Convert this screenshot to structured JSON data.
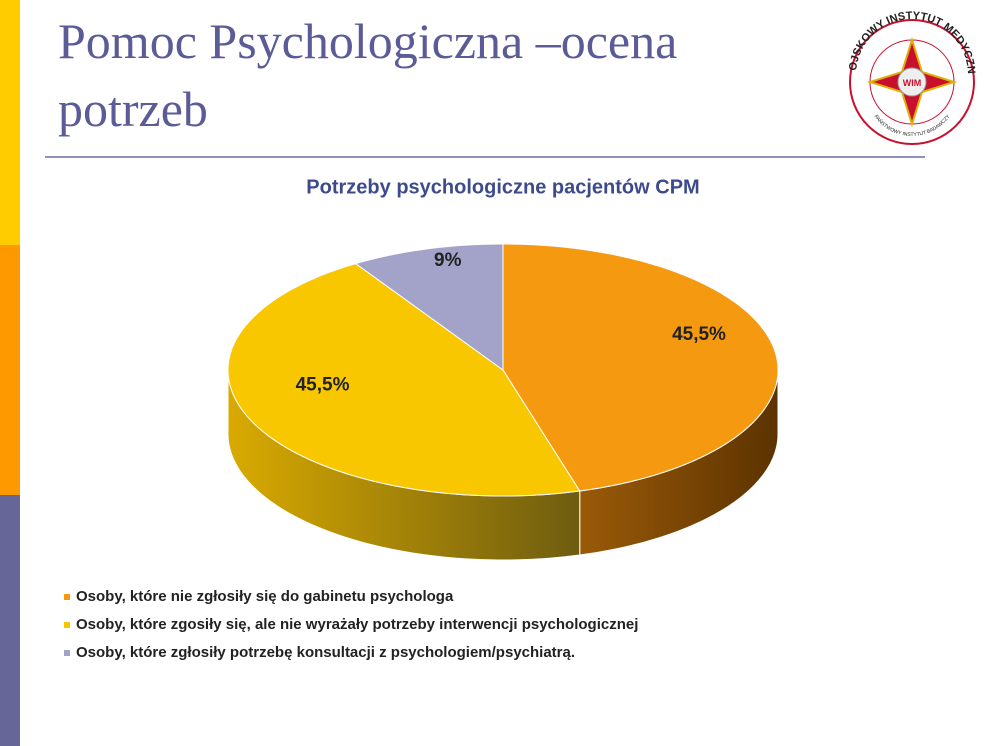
{
  "slide": {
    "title": "Pomoc Psychologiczna –ocena potrzeb",
    "logo_top": "WOJSKOWY INSTYTUT MEDYCZNY",
    "logo_center": "WIM",
    "logo_bottom": "PAŃSTWOWY INSTYTUT BADAWCZY"
  },
  "chart_data": {
    "type": "pie",
    "title": "Potrzeby psychologiczne pacjentów CPM",
    "categories": [
      "Osoby, które nie zgłosiły się do gabinetu psychologa",
      "Osoby, które zgosiły się, ale nie wyrażały potrzeby interwencji psychologicznej",
      "Osoby, które zgłosiły potrzebę konsultacji z psychologiem/psychiatrą."
    ],
    "values": [
      45.5,
      45.5,
      9
    ],
    "value_labels": [
      "45,5%",
      "45,5%",
      "9%"
    ],
    "colors": [
      "#f59a10",
      "#f8c700",
      "#a3a3c9"
    ],
    "legend": "bottom"
  }
}
